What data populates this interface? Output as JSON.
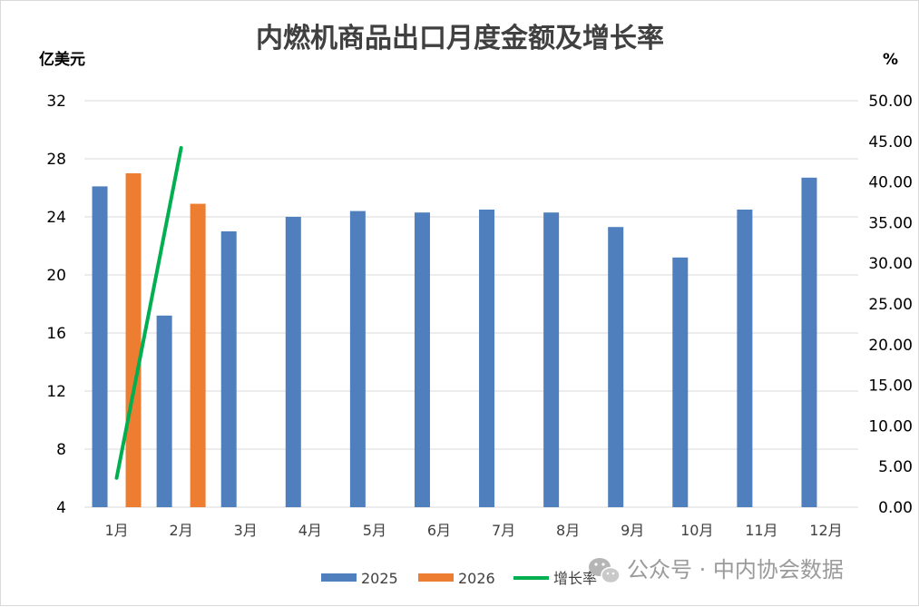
{
  "chart_data": {
    "type": "bar",
    "title": "内燃机商品出口月度金额及增长率",
    "y_left_unit": "亿美元",
    "y_right_unit": "%",
    "categories": [
      "1月",
      "2月",
      "3月",
      "4月",
      "5月",
      "6月",
      "7月",
      "8月",
      "9月",
      "10月",
      "11月",
      "12月"
    ],
    "y_left": {
      "ylim": [
        4,
        32
      ],
      "ticks": [
        "4",
        "8",
        "12",
        "16",
        "20",
        "24",
        "28",
        "32"
      ]
    },
    "y_right": {
      "ylim": [
        0,
        50
      ],
      "ticks": [
        "0.00",
        "5.00",
        "10.00",
        "15.00",
        "20.00",
        "25.00",
        "30.00",
        "35.00",
        "40.00",
        "45.00",
        "50.00"
      ]
    },
    "grid": true,
    "legend_position": "bottom",
    "series": [
      {
        "name": "2025",
        "type": "bar",
        "axis": "left",
        "color": "#4f7fbd",
        "values": [
          26.1,
          17.2,
          23.0,
          24.0,
          24.4,
          24.3,
          24.5,
          24.3,
          23.3,
          21.2,
          24.5,
          26.7
        ]
      },
      {
        "name": "2026",
        "type": "bar",
        "axis": "left",
        "color": "#ed7d31",
        "values": [
          27.0,
          24.9,
          null,
          null,
          null,
          null,
          null,
          null,
          null,
          null,
          null,
          null
        ]
      },
      {
        "name": "增长率",
        "type": "line",
        "axis": "right",
        "color": "#00b050",
        "values": [
          3.6,
          44.2,
          null,
          null,
          null,
          null,
          null,
          null,
          null,
          null,
          null,
          null
        ]
      }
    ]
  },
  "watermark": {
    "text": "公众号 · 中内协会数据",
    "icon": "wechat-icon"
  }
}
